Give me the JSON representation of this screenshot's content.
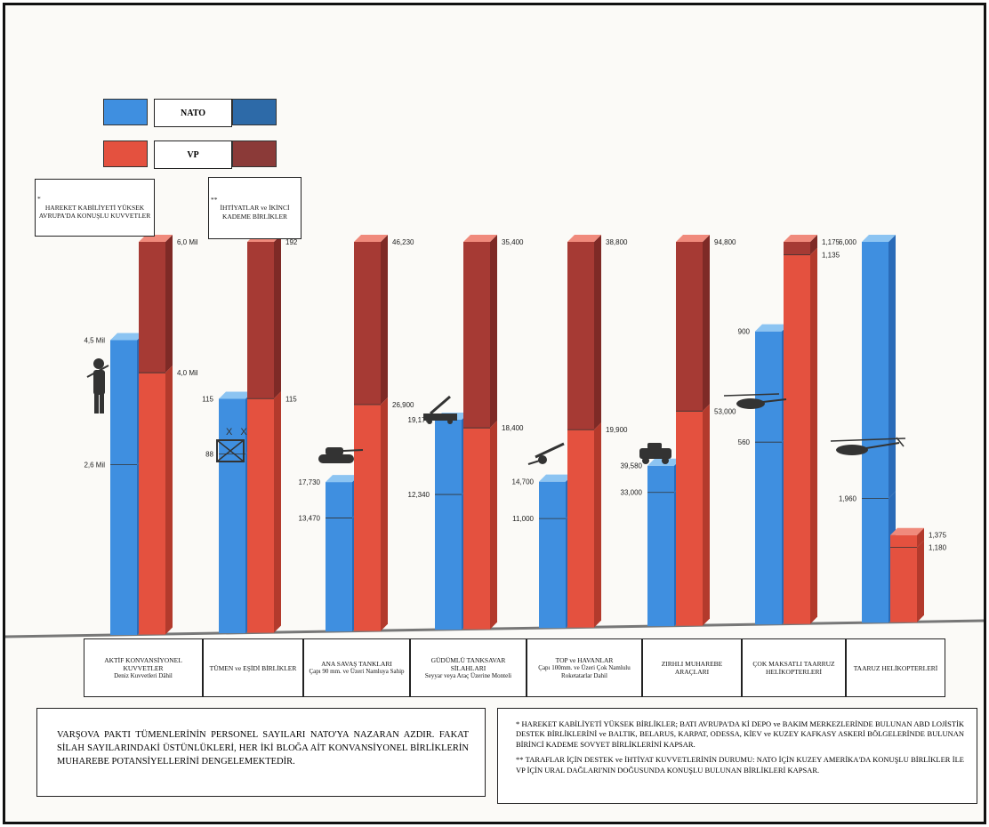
{
  "colors": {
    "nato_front": "#3f8fe0",
    "nato_side": "#2a6bb8",
    "nato_top": "#8cc4f2",
    "nato_reserve_swatch": "#2d6aa8",
    "vp_front": "#e4513f",
    "vp_side": "#b33a2c",
    "vp_top": "#f08a7c",
    "vp_reserve_front": "#a63a34",
    "vp_reserve_side": "#7e2a26",
    "vp_reserve_swatch": "#8b3a38",
    "baseline": "#777777"
  },
  "legend": {
    "nato": "NATO",
    "vp": "VP",
    "note_active_mark": "*",
    "note_active": "HAREKET KABİLİYETİ YÜKSEK AVRUPA'DA KONUŞLU KUVVETLER",
    "note_reserve_mark": "**",
    "note_reserve": "İHTİYATLAR ve İKİNCİ KADEME BİRLİKLER"
  },
  "icons": [
    "soldier-icon",
    "division-symbol-icon",
    "tank-icon",
    "missile-launcher-icon",
    "artillery-icon",
    "armored-car-icon",
    "utility-helicopter-icon",
    "attack-helicopter-icon"
  ],
  "categories": [
    {
      "title": "AKTİF KONVANSİYONEL KUVVETLER",
      "subtitle": "Deniz Kuvvetleri Dâhil"
    },
    {
      "title": "TÜMEN ve EŞİDİ BİRLİKLER",
      "subtitle": ""
    },
    {
      "title": "ANA SAVAŞ TANKLARI",
      "subtitle": "Çapı 90 mm. ve Üzeri Namluya Sahip"
    },
    {
      "title": "GÜDÜMLÜ TANKSAVAR SİLAHLARI",
      "subtitle": "Seyyar veya Araç Üzerine Monteli"
    },
    {
      "title": "TOP ve HAVANLAR",
      "subtitle": "Çapı 100mm. ve Üzeri Çok Namlulu Roketatarlar Dahil"
    },
    {
      "title": "ZIRHLI MUHAREBE ARAÇLARI",
      "subtitle": ""
    },
    {
      "title": "ÇOK MAKSATLI TAARRUZ HELİKOPTERLERİ",
      "subtitle": ""
    },
    {
      "title": "TAARUZ HELİKOPTERLERİ",
      "subtitle": ""
    }
  ],
  "chart_data": {
    "type": "bar",
    "title": "",
    "xlabel": "",
    "ylabel": "",
    "grid": false,
    "legend_placement": "top-left",
    "note": "Each category is scaled independently; pairs of 3D columns with an active (lower) segment and reserve (upper) segment.",
    "categories": [
      "AKTİF KONVANSİYONEL KUVVETLER",
      "TÜMEN ve EŞİDİ BİRLİKLER",
      "ANA SAVAŞ TANKLARI",
      "GÜDÜMLÜ TANKSAVAR SİLAHLARI",
      "TOP ve HAVANLAR",
      "ZIRHLI MUHAREBE ARAÇLARI",
      "ÇOK MAKSATLI TAARRUZ HELİKOPTERLERİ",
      "TAARUZ HELİKOPTERLERİ"
    ],
    "series": [
      {
        "name": "NATO",
        "active": [
          2.6,
          88,
          13470,
          12340,
          11000,
          33000,
          560,
          1960
        ],
        "total": [
          4.5,
          115,
          17730,
          19170,
          14700,
          39580,
          900,
          6000
        ],
        "active_labels": [
          "2,6 Mil",
          "88",
          "13,470",
          "12,340",
          "11,000",
          "33,000",
          "560",
          "1,960"
        ],
        "total_labels": [
          "4,5 Mil",
          "115",
          "17,730",
          "19,170",
          "14,700",
          "39,580",
          "900",
          "6,000"
        ]
      },
      {
        "name": "VP",
        "active": [
          4.0,
          115,
          26900,
          18400,
          19900,
          53000,
          1135,
          1180
        ],
        "total": [
          6.0,
          192,
          46230,
          35400,
          38800,
          94800,
          1175,
          1375
        ],
        "active_labels": [
          "4,0 Mil",
          "115",
          "26,900",
          "18,400",
          "19,900",
          "53,000",
          "1,135",
          "1,180"
        ],
        "total_labels": [
          "6,0 Mil",
          "192",
          "46,230",
          "35,400",
          "38,800",
          "94,800",
          "1,175",
          "1,375"
        ]
      }
    ]
  },
  "bottom_left_text": "VARŞOVA PAKTI TÜMENLERİNİN PERSONEL SAYILARI NATO'YA NAZARAN AZDIR. FAKAT SİLAH SAYILARINDAKİ ÜSTÜNLÜKLERİ, HER İKİ BLOĞA AİT KONVANSİYONEL BİRLİKLERİN MUHAREBE POTANSİYELLERİNİ DENGELEMEKTEDİR.",
  "bottom_right_note1": "* HAREKET KABİLİYETİ YÜKSEK BİRLİKLER; BATI AVRUPA'DA Kİ DEPO ve BAKIM MERKEZLERİNDE BULUNAN ABD LOJİSTİK DESTEK BİRLİKLERİNİ ve BALTIK, BELARUS, KARPAT, ODESSA, KİEV ve KUZEY KAFKASY ASKERİ BÖLGELERİNDE BULUNAN BİRİNCİ KADEME SOVYET BİRLİKLERİNİ KAPSAR.",
  "bottom_right_note2": "** TARAFLAR İÇİN DESTEK ve İHTİYAT KUVVETLERİNİN DURUMU: NATO İÇİN KUZEY AMERİKA'DA KONUŞLU BİRLİKLER İLE VP İÇİN URAL DAĞLARI'NIN DOĞUSUNDA KONUŞLU BULUNAN BİRLİKLERİ KAPSAR."
}
